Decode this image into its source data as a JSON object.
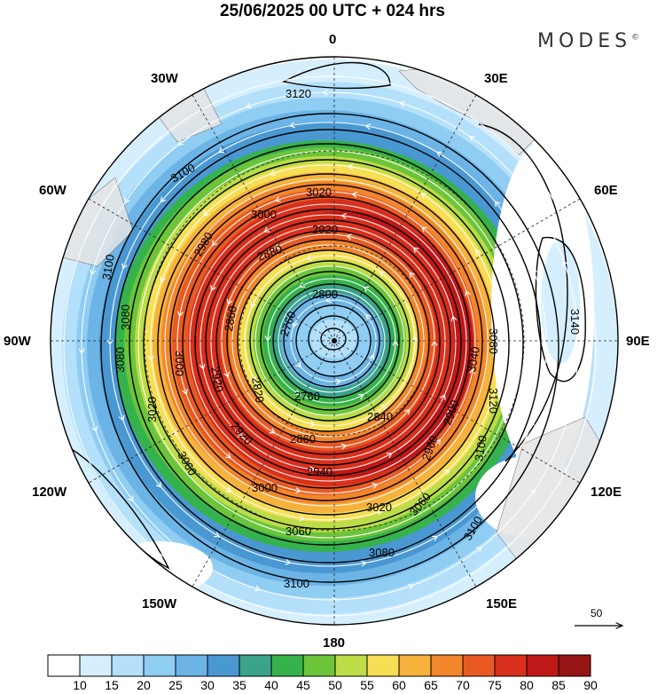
{
  "title": "25/06/2025  00 UTC  + 024 hrs",
  "brand": "MODES",
  "brand_mark": "©",
  "lon_labels": {
    "n": "0",
    "e30": "30E",
    "e60": "60E",
    "e90": "90E",
    "e120": "120E",
    "e150": "150E",
    "s": "180",
    "w150": "150W",
    "w120": "120W",
    "w90": "90W",
    "w60": "60W",
    "w30": "30W"
  },
  "contours": [
    {
      "label": "3120",
      "r": 0
    },
    {
      "label": "3100",
      "r": 0
    },
    {
      "label": "3080",
      "r": 0
    },
    {
      "label": "3060",
      "r": 0
    },
    {
      "label": "3040",
      "r": 0
    },
    {
      "label": "3020",
      "r": 0
    },
    {
      "label": "3000",
      "r": 0
    },
    {
      "label": "2980",
      "r": 0
    },
    {
      "label": "2960",
      "r": 0
    },
    {
      "label": "2940",
      "r": 0
    },
    {
      "label": "2920",
      "r": 0
    },
    {
      "label": "2900",
      "r": 0
    },
    {
      "label": "2880",
      "r": 0
    },
    {
      "label": "2860",
      "r": 0
    },
    {
      "label": "2840",
      "r": 0
    },
    {
      "label": "2820",
      "r": 0
    },
    {
      "label": "2800",
      "r": 0
    },
    {
      "label": "2780",
      "r": 0
    },
    {
      "label": "2760",
      "r": 0
    },
    {
      "label": "3140",
      "r": 0
    }
  ],
  "vector_reference": {
    "label": "50"
  },
  "colorbar": {
    "ticks": [
      "10",
      "15",
      "20",
      "25",
      "30",
      "35",
      "40",
      "45",
      "50",
      "55",
      "60",
      "65",
      "70",
      "75",
      "80",
      "85",
      "90"
    ],
    "colors": [
      "#ffffff",
      "#d6efff",
      "#b4e0fb",
      "#8fcdf3",
      "#6cb4e6",
      "#4a98d2",
      "#3aa38a",
      "#36b24c",
      "#6cc43b",
      "#bcdc48",
      "#f6de55",
      "#f6b23c",
      "#f1862c",
      "#e85a22",
      "#d8301c",
      "#c01818",
      "#961414"
    ]
  }
}
